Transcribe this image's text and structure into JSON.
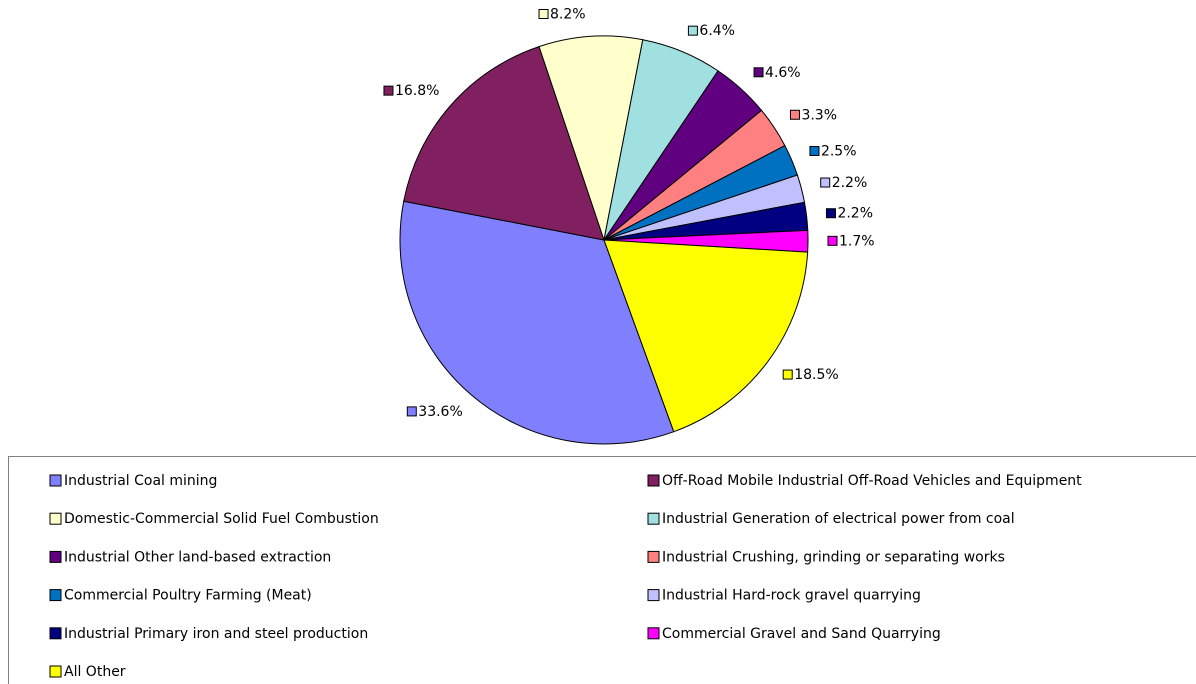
{
  "chart_data": {
    "type": "pie",
    "categories": [
      "Industrial Coal mining",
      "Off-Road Mobile Industrial Off-Road Vehicles and Equipment",
      "Domestic-Commercial Solid Fuel Combustion",
      "Industrial Generation of electrical power from coal",
      "Industrial Other land-based extraction",
      "Industrial Crushing, grinding or separating works",
      "Commercial Poultry Farming (Meat)",
      "Industrial Hard-rock gravel quarrying",
      "Industrial Primary iron and steel production",
      "Commercial Gravel and Sand Quarrying",
      "All Other"
    ],
    "values": [
      33.6,
      16.8,
      8.2,
      6.4,
      4.6,
      3.3,
      2.5,
      2.2,
      2.2,
      1.7,
      18.5
    ],
    "value_labels": [
      "33.6%",
      "16.8%",
      "8.2%",
      "6.4%",
      "4.6%",
      "3.3%",
      "2.5%",
      "2.2%",
      "2.2%",
      "1.7%",
      "18.5%"
    ],
    "colors": [
      "#8080ff",
      "#802060",
      "#ffffcc",
      "#a0e0e0",
      "#600080",
      "#ff8080",
      "#0070c0",
      "#c0c0ff",
      "#000080",
      "#ff00ff",
      "#ffff00"
    ],
    "legend": "bottom"
  }
}
